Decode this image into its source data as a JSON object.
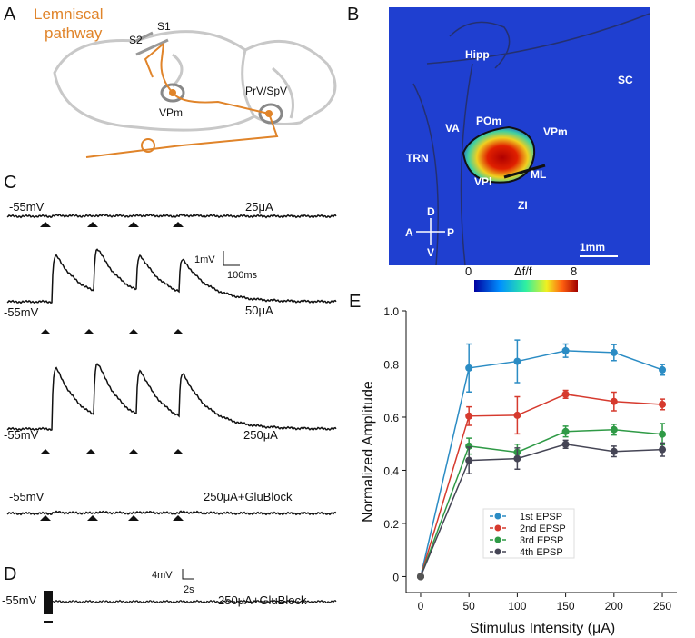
{
  "panels": {
    "a": {
      "letter": "A",
      "title_lines": [
        "Lemniscal",
        "pathway"
      ],
      "labels": [
        "S1",
        "S2",
        "VPm",
        "PrV/SpV"
      ]
    },
    "b": {
      "letter": "B",
      "labels": [
        "Hipp",
        "SC",
        "VA",
        "POm",
        "VPm",
        "TRN",
        "ML",
        "VPl",
        "ZI"
      ],
      "compass": [
        "D",
        "A",
        "P",
        "V"
      ],
      "scale_bar": "1mm",
      "colorbar": {
        "min": "0",
        "label": "Δf/f",
        "max": "8"
      }
    },
    "c": {
      "letter": "C",
      "traces": [
        {
          "potential": "-55mV",
          "stimulus": "25μA"
        },
        {
          "potential": "-55mV",
          "stimulus": "50μA"
        },
        {
          "potential": "-55mV",
          "stimulus": "250μA"
        },
        {
          "potential": "-55mV",
          "stimulus": "250μA+GluBlock"
        }
      ],
      "scale_bar": {
        "voltage": "1mV",
        "time": "100ms"
      }
    },
    "d": {
      "letter": "D",
      "potential": "-55mV",
      "stimulus": "250μA+GluBlock",
      "scale_bar": {
        "voltage": "4mV",
        "time": "2s"
      }
    },
    "e": {
      "letter": "E"
    }
  },
  "chart_data": {
    "type": "line",
    "x_label": "Stimulus Intensity (μA)",
    "y_label": "Normalized Amplitude",
    "x": [
      0,
      50,
      100,
      150,
      200,
      250
    ],
    "series": [
      {
        "name": "1st EPSP",
        "color": "#2b8cc4",
        "values": [
          0,
          0.785,
          0.81,
          0.85,
          0.843,
          0.778
        ],
        "error": [
          0,
          0.09,
          0.08,
          0.025,
          0.03,
          0.02
        ]
      },
      {
        "name": "2nd EPSP",
        "color": "#d63a2e",
        "values": [
          0,
          0.604,
          0.607,
          0.686,
          0.659,
          0.648
        ],
        "error": [
          0,
          0.035,
          0.07,
          0.015,
          0.035,
          0.02
        ]
      },
      {
        "name": "3rd EPSP",
        "color": "#2f9a46",
        "values": [
          0,
          0.491,
          0.468,
          0.546,
          0.553,
          0.536
        ],
        "error": [
          0,
          0.03,
          0.03,
          0.02,
          0.02,
          0.04
        ]
      },
      {
        "name": "4th EPSP",
        "color": "#454555",
        "values": [
          0,
          0.437,
          0.444,
          0.498,
          0.471,
          0.478
        ],
        "error": [
          0,
          0.05,
          0.04,
          0.015,
          0.02,
          0.025
        ]
      }
    ],
    "xlim": [
      -15,
      265
    ],
    "ylim": [
      -0.06,
      1.0
    ],
    "xticks": [
      0,
      50,
      100,
      150,
      200,
      250
    ],
    "yticks": [
      0,
      0.2,
      0.4,
      0.6,
      0.8,
      {
        "value": 1.0,
        "label": "1.0"
      }
    ]
  }
}
